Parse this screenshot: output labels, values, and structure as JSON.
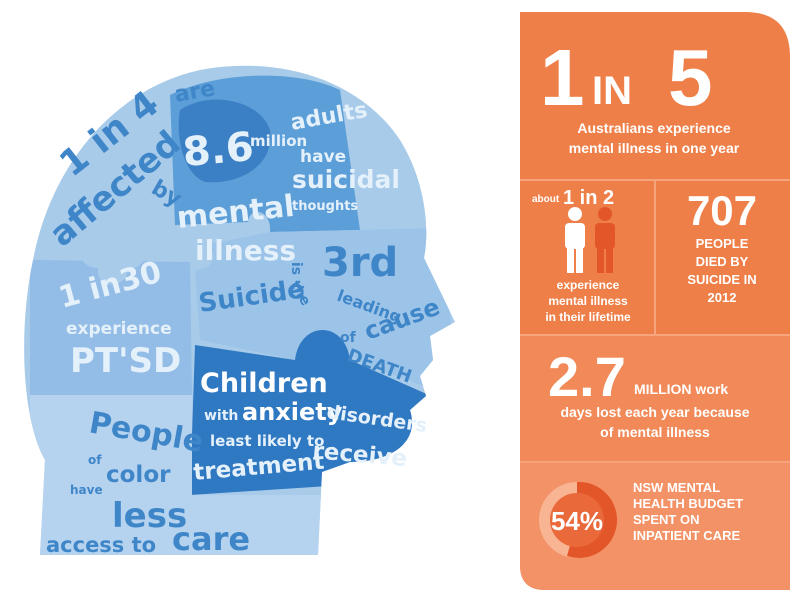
{
  "head": {
    "affected": {
      "lead": "1 in 4",
      "are": "are",
      "affected": "affected",
      "by": "by",
      "mental": "mental",
      "illness": "illness"
    },
    "suicidal": {
      "number": "8.6",
      "million": "million",
      "adults": "adults",
      "have": "have",
      "suicidal": "suicidal",
      "thoughts": "thoughts"
    },
    "suicide": {
      "suicide": "Suicide",
      "is": "is",
      "the": "the",
      "rank": "3rd",
      "leading": "leading",
      "cause": "cause",
      "of": "of",
      "death": "DEATH"
    },
    "ptsd": {
      "lead": "1 in30",
      "experience": "experience",
      "ptsd": "PT'SD"
    },
    "children": {
      "children": "Children",
      "with": "with",
      "anxiety": "anxiety",
      "disorders": "disorders",
      "least": "least likely to",
      "receive": "receive",
      "treatment": "treatment"
    },
    "color": {
      "people": "People",
      "of": "of",
      "color": "color",
      "have": "have",
      "less": "less",
      "access": "access to",
      "care": "care"
    }
  },
  "panel": {
    "headline": {
      "one": "1",
      "in": "IN",
      "five": "5",
      "lines": [
        "Australians experience",
        "mental illness in one year"
      ]
    },
    "lifetime": {
      "about": "about",
      "ratio": "1 in 2",
      "lines": [
        "experience",
        "mental illness",
        "in their lifetime"
      ]
    },
    "deaths": {
      "number": "707",
      "lines": [
        "PEOPLE",
        "DIED BY",
        "SUICIDE IN",
        "2012"
      ]
    },
    "workdays": {
      "number": "2.7",
      "lines": [
        "MILLION work",
        "days lost each year because",
        "of mental illness"
      ]
    },
    "budget": {
      "percent": "54%",
      "lines": [
        "NSW MENTAL",
        "HEALTH BUDGET",
        "SPENT ON",
        "INPATIENT CARE"
      ]
    }
  }
}
